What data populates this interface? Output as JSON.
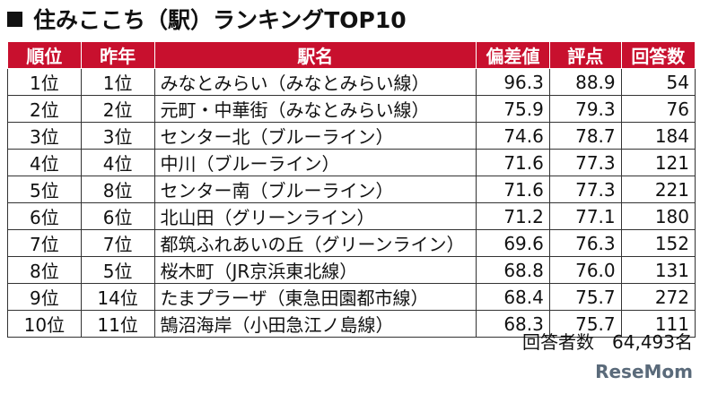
{
  "header": {
    "title": "住みここち（駅）ランキングTOP10"
  },
  "table": {
    "columns": [
      "順位",
      "昨年",
      "駅名",
      "偏差値",
      "評点",
      "回答数"
    ],
    "rows": [
      [
        "1位",
        "1位",
        "みなとみらい（みなとみらい線）",
        "96.3",
        "88.9",
        "54"
      ],
      [
        "2位",
        "2位",
        "元町・中華街（みなとみらい線）",
        "75.9",
        "79.3",
        "76"
      ],
      [
        "3位",
        "3位",
        "センター北（ブルーライン）",
        "74.6",
        "78.7",
        "184"
      ],
      [
        "4位",
        "4位",
        "中川（ブルーライン）",
        "71.6",
        "77.3",
        "121"
      ],
      [
        "5位",
        "8位",
        "センター南（ブルーライン）",
        "71.6",
        "77.3",
        "221"
      ],
      [
        "6位",
        "6位",
        "北山田（グリーンライン）",
        "71.2",
        "77.1",
        "180"
      ],
      [
        "7位",
        "7位",
        "都筑ふれあいの丘（グリーンライン）",
        "69.6",
        "76.3",
        "152"
      ],
      [
        "8位",
        "5位",
        "桜木町（JR京浜東北線）",
        "68.8",
        "76.0",
        "131"
      ],
      [
        "9位",
        "14位",
        "たまプラーザ（東急田園都市線）",
        "68.4",
        "75.7",
        "272"
      ],
      [
        "10位",
        "11位",
        "鵠沼海岸（小田急江ノ島線）",
        "68.3",
        "75.7",
        "111"
      ]
    ]
  },
  "footer": {
    "note": "回答者数　64,493名",
    "logo": "ReseMom"
  }
}
